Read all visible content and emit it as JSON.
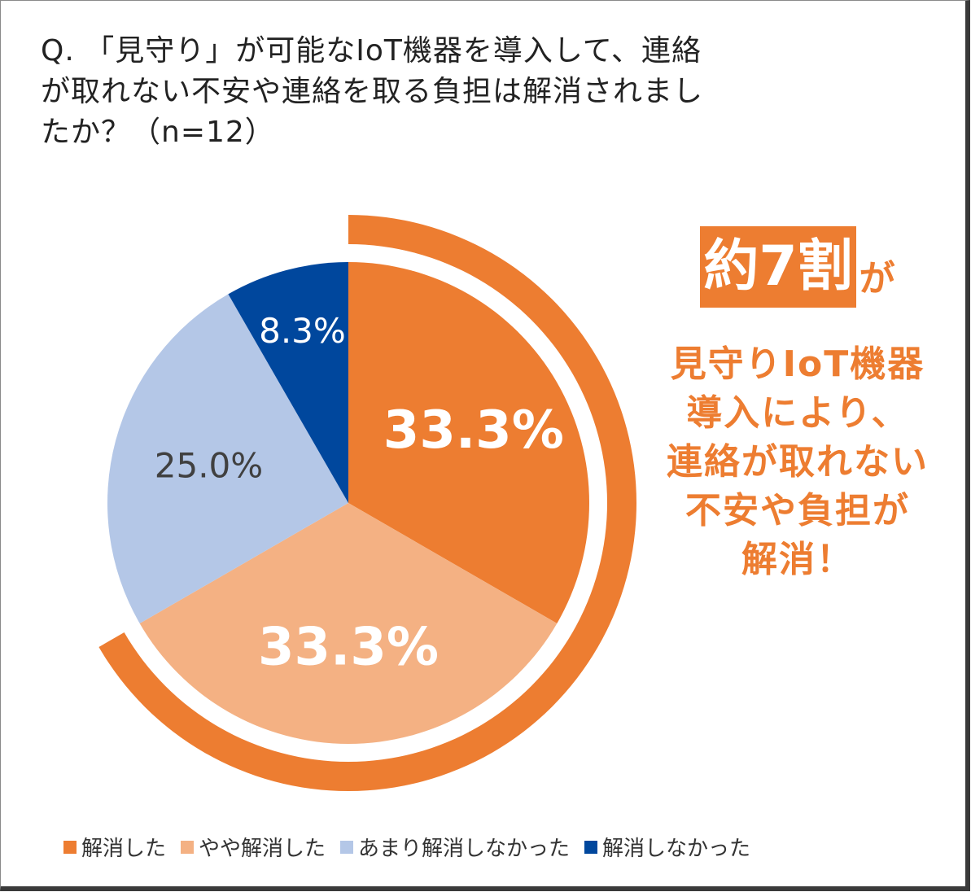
{
  "title": "Q. 「見守り」が可能なIoT機器を導入して、連絡\nが取れない不安や連絡を取る負担は解消されまし\nたか？（n=12）",
  "callout": {
    "badge": "約7割",
    "badge_suffix": "が",
    "lines": [
      "見守りIoT機器",
      "導入により、",
      "連絡が取れない",
      "不安や負担が",
      "解消！"
    ]
  },
  "colors": {
    "accent": "#ED7D31",
    "slice_1": "#ED7D31",
    "slice_2": "#F4B183",
    "slice_3": "#B4C7E7",
    "slice_4": "#00479D"
  },
  "chart_data": {
    "type": "pie",
    "title": "Q. 「見守り」が可能なIoT機器を導入して、連絡が取れない不安や連絡を取る負担は解消されましたか？（n=12）",
    "categories": [
      "解消した",
      "やや解消した",
      "あまり解消しなかった",
      "解消しなかった"
    ],
    "values": [
      33.3,
      33.3,
      25.0,
      8.3
    ],
    "labels": [
      "33.3%",
      "33.3%",
      "25.0%",
      "8.3%"
    ],
    "colors": [
      "#ED7D31",
      "#F4B183",
      "#B4C7E7",
      "#00479D"
    ],
    "label_colors": [
      "#ffffff",
      "#ffffff",
      "#404040",
      "#ffffff"
    ],
    "label_bold": [
      true,
      true,
      false,
      false
    ],
    "start_angle_deg": 0,
    "direction": "clockwise",
    "legend_position": "bottom",
    "highlight_arc": {
      "from_slice": 0,
      "to_slice": 1,
      "label": "約7割"
    }
  }
}
